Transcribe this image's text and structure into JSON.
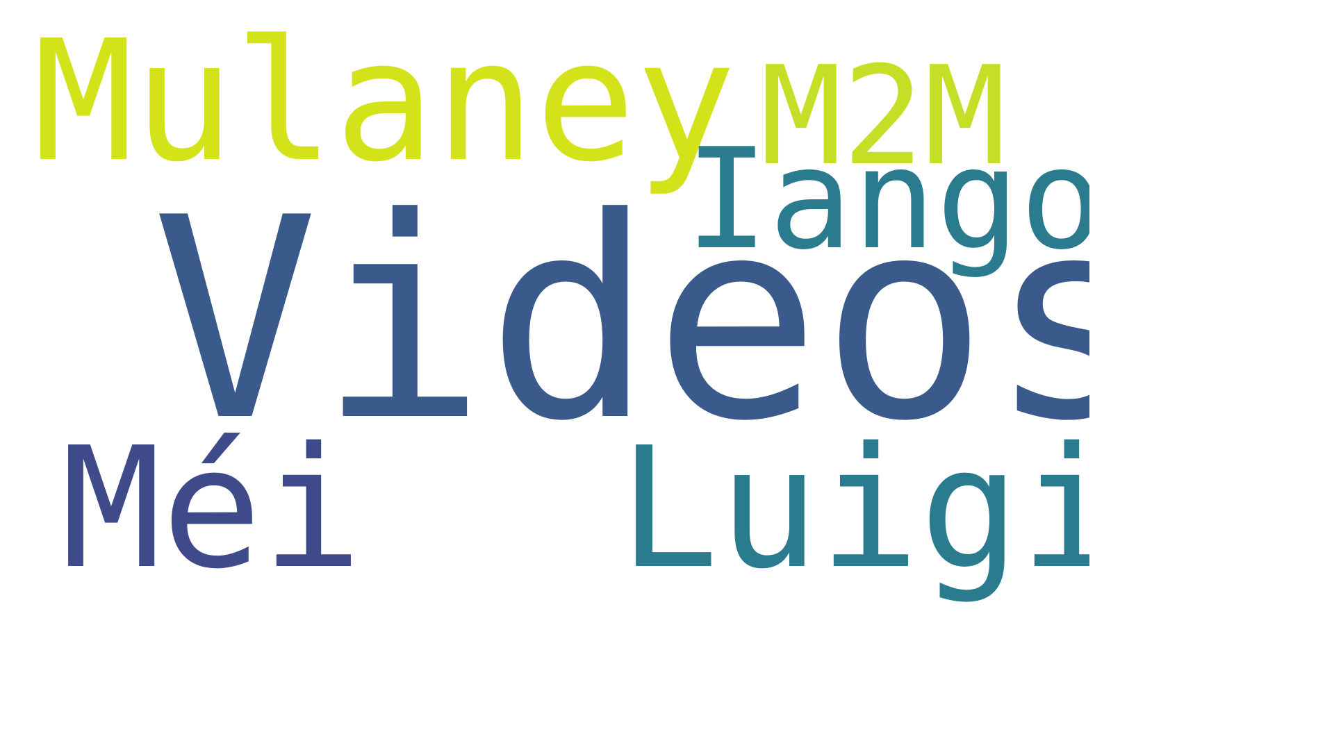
{
  "words": [
    {
      "text": "Videos",
      "color": "#3a5a8c"
    },
    {
      "text": "Mulaney",
      "color": "#d4e21a"
    },
    {
      "text": "M2M",
      "color": "#c4df26"
    },
    {
      "text": "Iango",
      "color": "#2a7b8e"
    },
    {
      "text": "Méi",
      "color": "#3f4a8a"
    },
    {
      "text": "Luigi",
      "color": "#2a7b8e"
    }
  ]
}
